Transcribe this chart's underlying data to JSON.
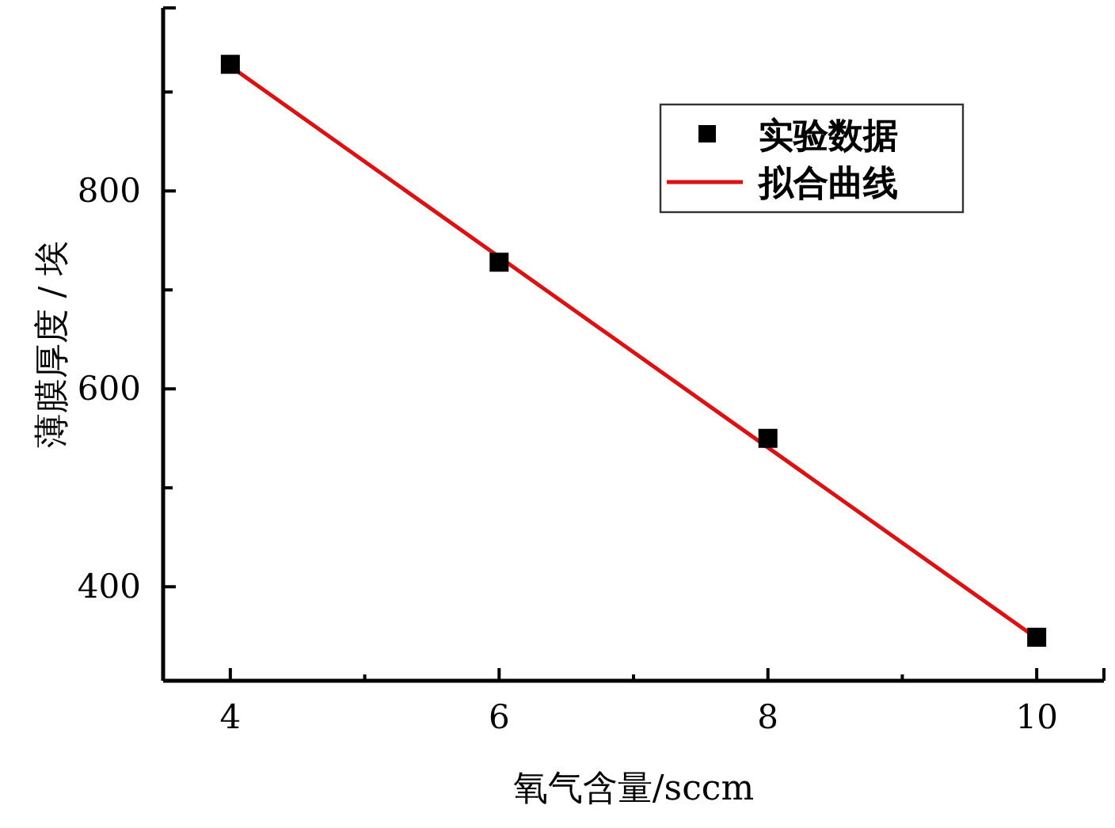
{
  "chart_data": {
    "type": "scatter",
    "xlabel": "氧气含量/sccm",
    "ylabel": "薄膜厚度 / 埃",
    "xlim": [
      3.5,
      10.5
    ],
    "xticks": [
      4,
      {
        "value": 5,
        "label": null
      },
      6,
      {
        "value": 7,
        "label": null
      },
      8,
      {
        "value": 9,
        "label": null
      },
      10
    ],
    "ylim": [
      305,
      985
    ],
    "yticks": [
      400,
      {
        "value": 500,
        "label": null
      },
      600,
      {
        "value": 700,
        "label": null
      },
      800,
      {
        "value": 900,
        "label": null
      }
    ],
    "grid": false,
    "legend": "top right",
    "series": [
      {
        "name": "实验数据",
        "marker": "square",
        "color": "#000000",
        "x": [
          4,
          6,
          8,
          10
        ],
        "values": [
          928,
          728,
          550,
          349
        ]
      },
      {
        "name": "拟合曲线",
        "type": "line",
        "marker": "none",
        "line_style": "solid",
        "color": "#dd1111",
        "x": [
          4,
          10
        ],
        "values": [
          926,
          348
        ]
      }
    ]
  }
}
